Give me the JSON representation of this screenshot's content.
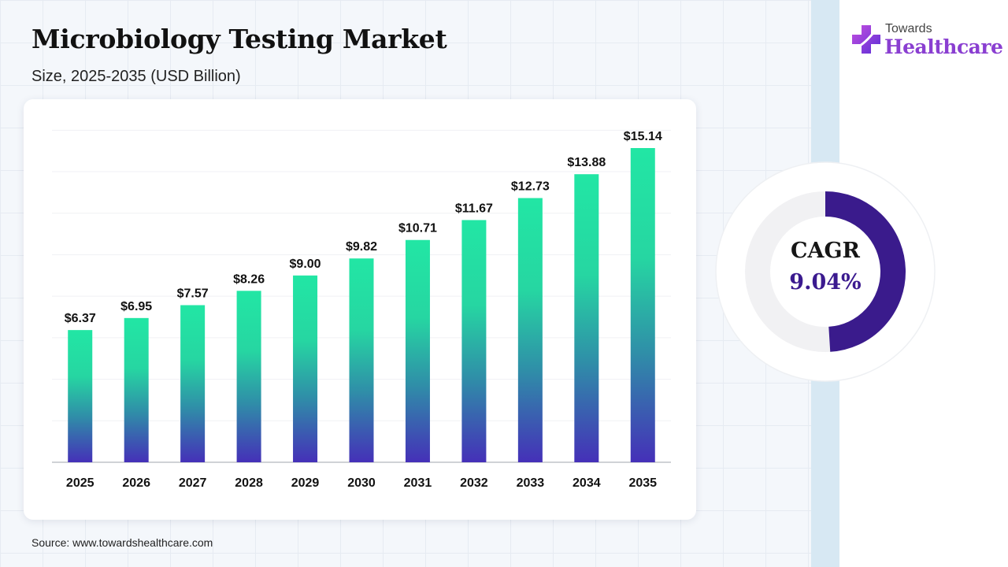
{
  "header": {
    "title": "Microbiology Testing Market",
    "subtitle": "Size, 2025-2035 (USD Billion)"
  },
  "brand": {
    "line1": "Towards",
    "line2": "Healthcare",
    "icon": "medical-cross-icon"
  },
  "cagr": {
    "label": "CAGR",
    "value": "9.04%",
    "fraction": 0.0904,
    "ring_color": "#3a1b8c"
  },
  "footer": {
    "source": "Source: www.towardshealthcare.com"
  },
  "chart_data": {
    "type": "bar",
    "title": "Microbiology Testing Market",
    "subtitle": "Size, 2025-2035 (USD Billion)",
    "xlabel": "",
    "ylabel": "",
    "categories": [
      "2025",
      "2026",
      "2027",
      "2028",
      "2029",
      "2030",
      "2031",
      "2032",
      "2033",
      "2034",
      "2035"
    ],
    "values": [
      6.37,
      6.95,
      7.57,
      8.26,
      9.0,
      9.82,
      10.71,
      11.67,
      12.73,
      13.88,
      15.14
    ],
    "labels": [
      "$6.37",
      "$6.95",
      "$7.57",
      "$8.26",
      "$9.00",
      "$9.82",
      "$10.71",
      "$11.67",
      "$12.73",
      "$13.88",
      "$15.14"
    ],
    "ylim": [
      0,
      16
    ],
    "grid": true,
    "legend": "none",
    "colors": {
      "bar_top": "#22e6a4",
      "bar_mid": "#2f8fa8",
      "bar_bottom": "#4530b8"
    }
  }
}
